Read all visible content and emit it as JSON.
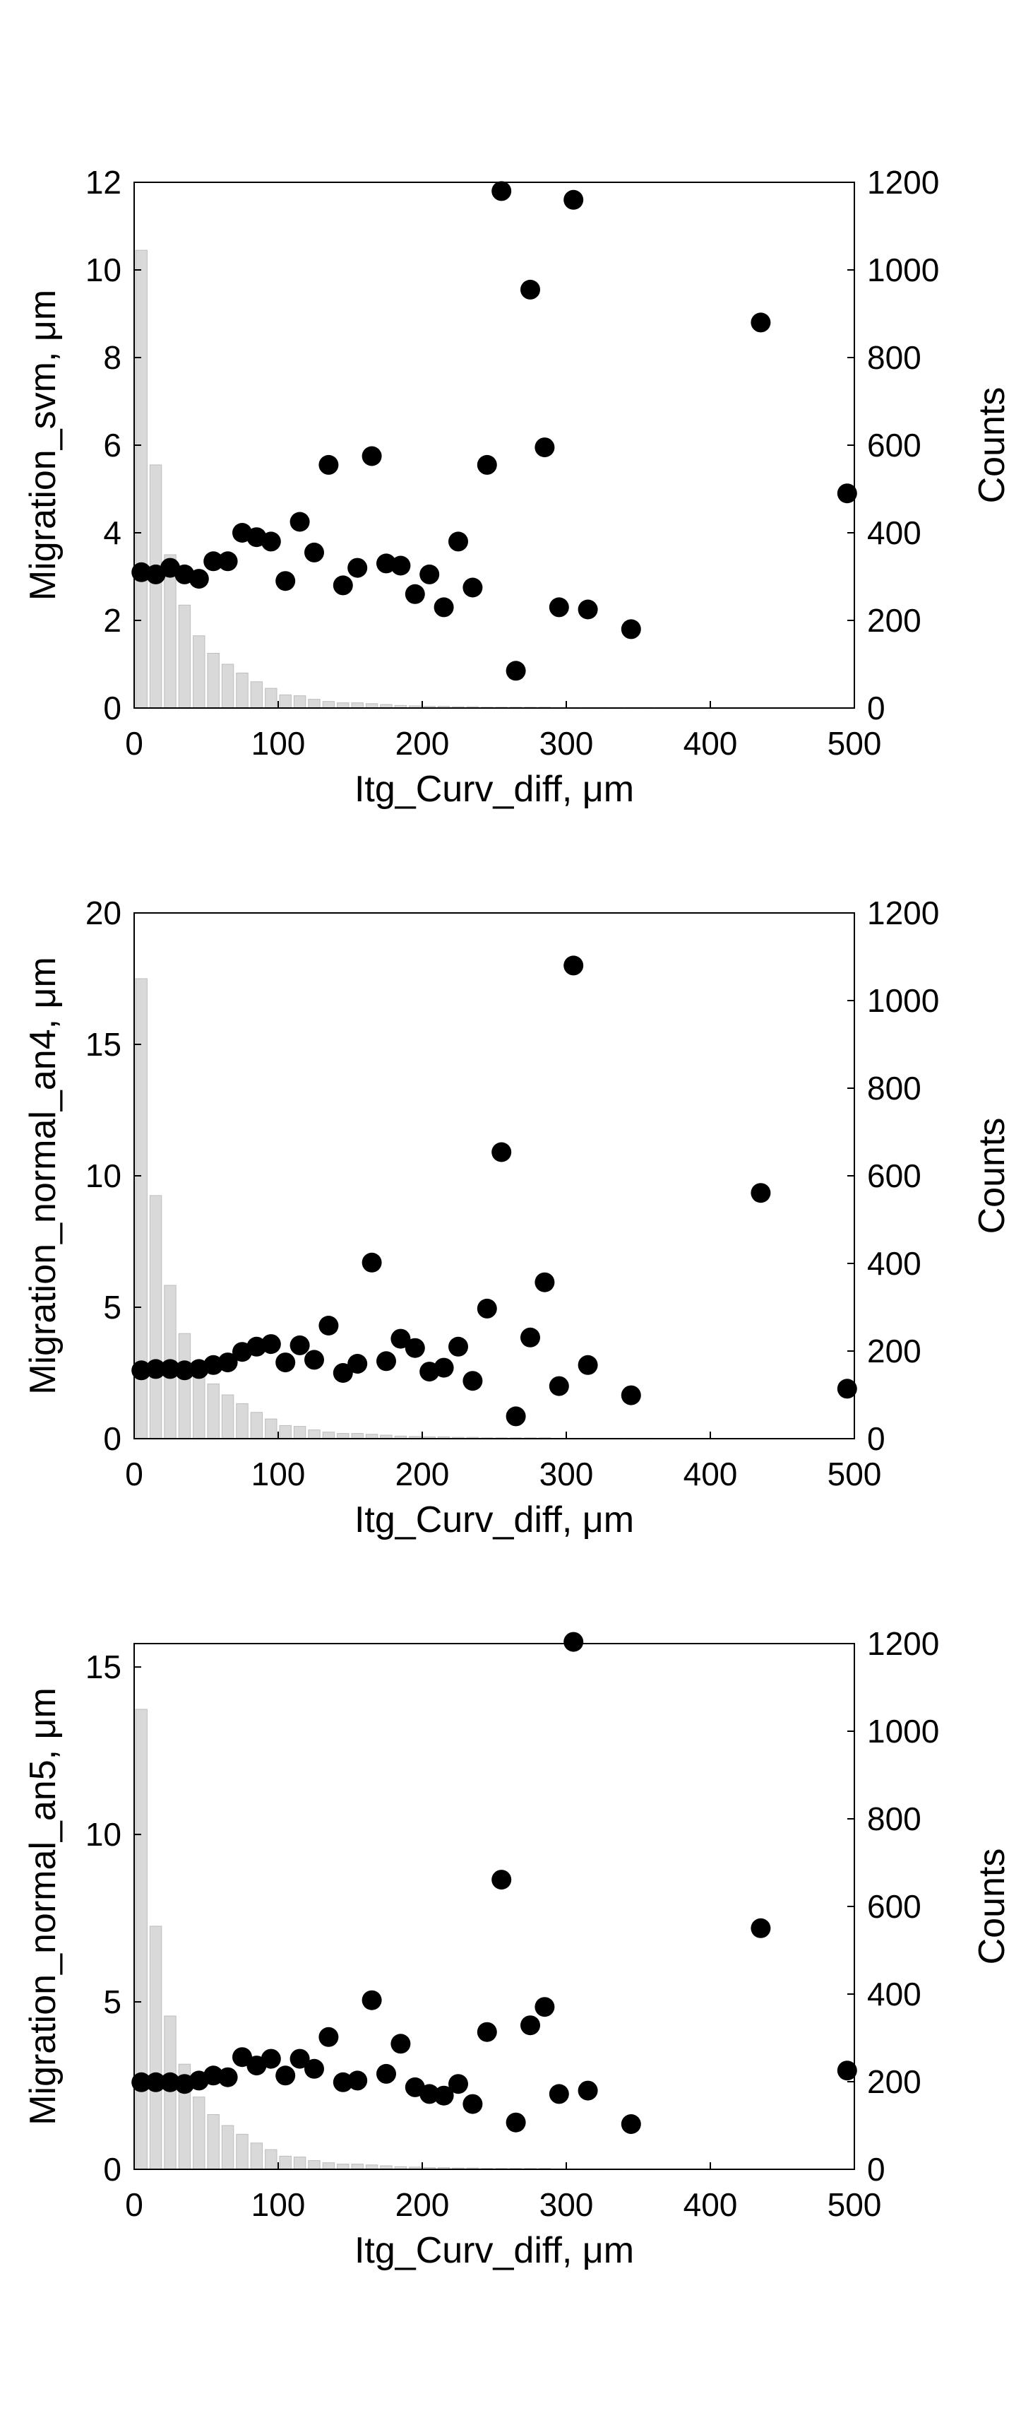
{
  "colors": {
    "histogram_bar": "#d9d9d9",
    "histogram_edge": "#bdbdbd",
    "markers": "#000000",
    "axes": "#000000"
  },
  "chart_data": [
    {
      "type": "scatter",
      "xlabel": "Itg_Curv_diff, μm",
      "ylabel": "Migration_svm, μm",
      "ylabel_right": "Counts",
      "xlim": [
        0,
        500
      ],
      "ylim": [
        0,
        12
      ],
      "ylim_right": [
        0,
        1200
      ],
      "xticks": [
        0,
        100,
        200,
        300,
        400,
        500
      ],
      "yticks": [
        0,
        2,
        4,
        6,
        8,
        10,
        12
      ],
      "yticks_right": [
        0,
        200,
        400,
        600,
        800,
        1000,
        1200
      ],
      "grid": false,
      "histogram": {
        "bin_width": 10,
        "bin_starts": [
          0,
          10,
          20,
          30,
          40,
          50,
          60,
          70,
          80,
          90,
          100,
          110,
          120,
          130,
          140,
          150,
          160,
          170,
          180,
          190,
          200,
          210,
          220,
          230,
          240,
          250,
          260,
          270,
          280,
          290,
          300,
          310,
          320,
          330,
          340,
          350
        ],
        "counts": [
          1045,
          555,
          350,
          235,
          165,
          125,
          100,
          80,
          60,
          45,
          30,
          28,
          20,
          15,
          12,
          12,
          10,
          8,
          6,
          5,
          4,
          4,
          3,
          3,
          2,
          2,
          2,
          2,
          2,
          1,
          1,
          1,
          1,
          1,
          1,
          1
        ]
      },
      "points": {
        "x": [
          5,
          15,
          25,
          35,
          45,
          55,
          65,
          75,
          85,
          95,
          105,
          115,
          125,
          135,
          145,
          155,
          165,
          175,
          185,
          195,
          205,
          215,
          225,
          235,
          245,
          255,
          265,
          275,
          285,
          295,
          305,
          315,
          345,
          435,
          495
        ],
        "y": [
          3.1,
          3.05,
          3.2,
          3.05,
          2.95,
          3.35,
          3.35,
          4.0,
          3.9,
          3.8,
          2.9,
          4.25,
          3.55,
          5.55,
          2.8,
          3.2,
          5.75,
          3.3,
          3.25,
          2.6,
          3.05,
          2.3,
          3.8,
          2.75,
          5.55,
          11.8,
          0.85,
          9.55,
          5.95,
          2.3,
          11.6,
          2.25,
          1.8,
          8.8,
          4.9
        ]
      }
    },
    {
      "type": "scatter",
      "xlabel": "Itg_Curv_diff, μm",
      "ylabel": "Migration_normal_an4, μm",
      "ylabel_right": "Counts",
      "xlim": [
        0,
        500
      ],
      "ylim": [
        0,
        20
      ],
      "ylim_right": [
        0,
        1200
      ],
      "xticks": [
        0,
        100,
        200,
        300,
        400,
        500
      ],
      "yticks": [
        0,
        5,
        10,
        15,
        20
      ],
      "yticks_right": [
        0,
        200,
        400,
        600,
        800,
        1000,
        1200
      ],
      "grid": false,
      "histogram": {
        "bin_width": 10,
        "bin_starts": [
          0,
          10,
          20,
          30,
          40,
          50,
          60,
          70,
          80,
          90,
          100,
          110,
          120,
          130,
          140,
          150,
          160,
          170,
          180,
          190,
          200,
          210,
          220,
          230,
          240,
          250,
          260,
          270,
          280,
          290,
          300,
          310,
          320,
          330,
          340,
          350
        ],
        "counts": [
          1050,
          555,
          350,
          240,
          165,
          125,
          100,
          80,
          60,
          45,
          30,
          28,
          20,
          15,
          12,
          12,
          10,
          8,
          6,
          5,
          4,
          4,
          3,
          3,
          2,
          2,
          2,
          2,
          2,
          1,
          1,
          1,
          1,
          1,
          1,
          1
        ]
      },
      "points": {
        "x": [
          5,
          15,
          25,
          35,
          45,
          55,
          65,
          75,
          85,
          95,
          105,
          115,
          125,
          135,
          145,
          155,
          165,
          175,
          185,
          195,
          205,
          215,
          225,
          235,
          245,
          255,
          265,
          275,
          285,
          295,
          305,
          315,
          345,
          435,
          495
        ],
        "y": [
          2.6,
          2.65,
          2.65,
          2.6,
          2.65,
          2.8,
          2.9,
          3.3,
          3.5,
          3.6,
          2.9,
          3.55,
          3.0,
          4.3,
          2.5,
          2.85,
          6.7,
          2.95,
          3.8,
          3.45,
          2.55,
          2.7,
          3.5,
          2.2,
          4.95,
          10.9,
          0.85,
          3.85,
          5.95,
          2.0,
          18.0,
          2.8,
          1.65,
          9.35,
          1.9
        ]
      }
    },
    {
      "type": "scatter",
      "xlabel": "Itg_Curv_diff, μm",
      "ylabel": "Migration_normal_an5, μm",
      "ylabel_right": "Counts",
      "xlim": [
        0,
        500
      ],
      "ylim": [
        0,
        15.7
      ],
      "ylim_right": [
        0,
        1200
      ],
      "xticks": [
        0,
        100,
        200,
        300,
        400,
        500
      ],
      "yticks": [
        0,
        5,
        10,
        15
      ],
      "yticks_right": [
        0,
        200,
        400,
        600,
        800,
        1000,
        1200
      ],
      "grid": false,
      "histogram": {
        "bin_width": 10,
        "bin_starts": [
          0,
          10,
          20,
          30,
          40,
          50,
          60,
          70,
          80,
          90,
          100,
          110,
          120,
          130,
          140,
          150,
          160,
          170,
          180,
          190,
          200,
          210,
          220,
          230,
          240,
          250,
          260,
          270,
          280,
          290,
          300,
          310,
          320,
          330,
          340,
          350
        ],
        "counts": [
          1050,
          555,
          350,
          240,
          165,
          125,
          100,
          80,
          60,
          45,
          30,
          28,
          20,
          15,
          12,
          12,
          10,
          8,
          6,
          5,
          4,
          4,
          3,
          3,
          2,
          2,
          2,
          2,
          2,
          1,
          1,
          1,
          1,
          1,
          1,
          1
        ]
      },
      "points": {
        "x": [
          5,
          15,
          25,
          35,
          45,
          55,
          65,
          75,
          85,
          95,
          105,
          115,
          125,
          135,
          145,
          155,
          165,
          175,
          185,
          195,
          205,
          215,
          225,
          235,
          245,
          255,
          265,
          275,
          285,
          295,
          305,
          315,
          345,
          435,
          495
        ],
        "y": [
          2.6,
          2.6,
          2.6,
          2.55,
          2.65,
          2.8,
          2.75,
          3.35,
          3.1,
          3.3,
          2.8,
          3.3,
          3.0,
          3.95,
          2.6,
          2.65,
          5.05,
          2.85,
          3.75,
          2.45,
          2.25,
          2.2,
          2.55,
          1.95,
          4.1,
          8.65,
          1.4,
          4.3,
          4.85,
          2.25,
          15.75,
          2.35,
          1.35,
          7.2,
          2.95
        ]
      }
    }
  ]
}
